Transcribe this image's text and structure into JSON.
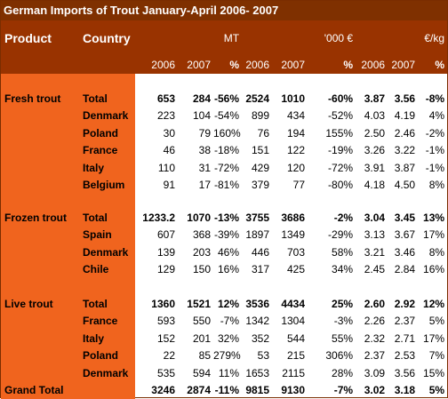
{
  "title": "German Imports of Trout January-April 2006- 2007",
  "header": {
    "product": "Product",
    "country": "Country",
    "units": [
      "MT",
      "'000 €",
      "€/kg"
    ],
    "columns": [
      "2006",
      "2007",
      "%",
      "2006",
      "2007",
      "%",
      "2006",
      "2007",
      "%"
    ]
  },
  "groups": [
    {
      "product": "Fresh trout",
      "rows": [
        [
          "Total",
          "653",
          "284",
          "-56%",
          "2524",
          "1010",
          "-60%",
          "3.87",
          "3.56",
          "-8%"
        ],
        [
          "Denmark",
          "223",
          "104",
          "-54%",
          "899",
          "434",
          "-52%",
          "4.03",
          "4.19",
          "4%"
        ],
        [
          "Poland",
          "30",
          "79",
          "160%",
          "76",
          "194",
          "155%",
          "2.50",
          "2.46",
          "-2%"
        ],
        [
          "France",
          "46",
          "38",
          "-18%",
          "151",
          "122",
          "-19%",
          "3.26",
          "3.22",
          "-1%"
        ],
        [
          "Italy",
          "110",
          "31",
          "-72%",
          "429",
          "120",
          "-72%",
          "3.91",
          "3.87",
          "-1%"
        ],
        [
          "Belgium",
          "91",
          "17",
          "-81%",
          "379",
          "77",
          "-80%",
          "4.18",
          "4.50",
          "8%"
        ]
      ]
    },
    {
      "product": "Frozen trout",
      "rows": [
        [
          "Total",
          "1233.2",
          "1070",
          "-13%",
          "3755",
          "3686",
          "-2%",
          "3.04",
          "3.45",
          "13%"
        ],
        [
          "Spain",
          "607",
          "368",
          "-39%",
          "1897",
          "1349",
          "-29%",
          "3.13",
          "3.67",
          "17%"
        ],
        [
          "Denmark",
          "139",
          "203",
          "46%",
          "446",
          "703",
          "58%",
          "3.21",
          "3.46",
          "8%"
        ],
        [
          "Chile",
          "129",
          "150",
          "16%",
          "317",
          "425",
          "34%",
          "2.45",
          "2.84",
          "16%"
        ]
      ]
    },
    {
      "product": "Live trout",
      "rows": [
        [
          "Total",
          "1360",
          "1521",
          "12%",
          "3536",
          "4434",
          "25%",
          "2.60",
          "2.92",
          "12%"
        ],
        [
          "France",
          "593",
          "550",
          "-7%",
          "1342",
          "1304",
          "-3%",
          "2.26",
          "2.37",
          "5%"
        ],
        [
          "Italy",
          "152",
          "201",
          "32%",
          "352",
          "544",
          "55%",
          "2.32",
          "2.71",
          "17%"
        ],
        [
          "Poland",
          "22",
          "85",
          "279%",
          "53",
          "215",
          "306%",
          "2.37",
          "2.53",
          "7%"
        ],
        [
          "Denmark",
          "535",
          "594",
          "11%",
          "1653",
          "2115",
          "28%",
          "3.09",
          "3.56",
          "15%"
        ]
      ]
    }
  ],
  "grand_total": {
    "label": "Grand Total",
    "values": [
      "3246",
      "2874",
      "-11%",
      "9815",
      "9130",
      "-7%",
      "3.02",
      "3.18",
      "5%"
    ]
  }
}
